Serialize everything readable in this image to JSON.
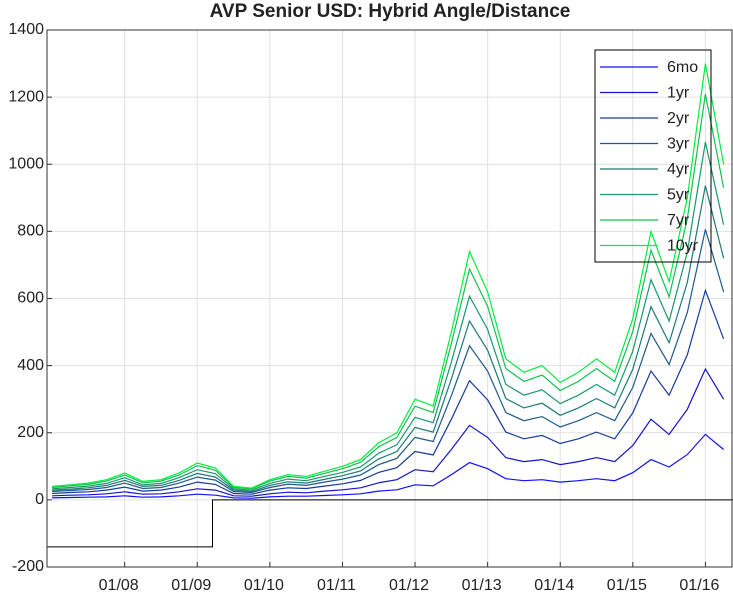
{
  "chart_data": {
    "type": "line",
    "title": "AVP Senior USD: Hybrid Angle/Distance",
    "x": [
      2007.0,
      2007.25,
      2007.5,
      2007.75,
      2008.0,
      2008.25,
      2008.5,
      2008.75,
      2009.0,
      2009.25,
      2009.5,
      2009.75,
      2010.0,
      2010.25,
      2010.5,
      2010.75,
      2011.0,
      2011.25,
      2011.5,
      2011.75,
      2012.0,
      2012.25,
      2012.5,
      2012.75,
      2013.0,
      2013.25,
      2013.5,
      2013.75,
      2014.0,
      2014.25,
      2014.5,
      2014.75,
      2015.0,
      2015.25,
      2015.5,
      2015.75,
      2016.0,
      2016.25
    ],
    "series": [
      {
        "name": "6mo",
        "color": "#1010ff",
        "values": [
          6,
          7,
          8,
          9,
          12,
          8,
          9,
          12,
          17,
          14,
          6,
          5,
          9,
          11,
          11,
          13,
          15,
          18,
          26,
          30,
          45,
          42,
          75,
          111,
          93,
          63,
          57,
          60,
          53,
          57,
          63,
          57,
          81,
          120,
          98,
          135,
          195,
          150
        ]
      },
      {
        "name": "1yr",
        "color": "#1414c8",
        "values": [
          12,
          14,
          15,
          18,
          24,
          17,
          18,
          24,
          33,
          29,
          12,
          11,
          18,
          23,
          21,
          26,
          30,
          36,
          51,
          60,
          90,
          84,
          150,
          222,
          186,
          126,
          114,
          120,
          105,
          114,
          126,
          114,
          162,
          240,
          195,
          270,
          390,
          300
        ]
      },
      {
        "name": "2yr",
        "color": "#163a9a",
        "values": [
          19,
          22,
          24,
          29,
          38,
          26,
          29,
          38,
          53,
          46,
          19,
          17,
          29,
          36,
          34,
          41,
          48,
          58,
          82,
          96,
          144,
          134,
          240,
          355,
          298,
          202,
          182,
          192,
          168,
          182,
          202,
          182,
          259,
          384,
          312,
          432,
          624,
          480
        ]
      },
      {
        "name": "3yr",
        "color": "#1e5a88",
        "values": [
          25,
          28,
          31,
          37,
          50,
          34,
          37,
          50,
          68,
          59,
          25,
          22,
          37,
          47,
          43,
          53,
          62,
          74,
          105,
          124,
          186,
          174,
          310,
          459,
          384,
          260,
          236,
          248,
          217,
          236,
          260,
          236,
          335,
          496,
          403,
          558,
          806,
          620
        ]
      },
      {
        "name": "4yr",
        "color": "#1e7878",
        "values": [
          29,
          32,
          36,
          43,
          58,
          40,
          43,
          58,
          79,
          68,
          29,
          25,
          43,
          54,
          50,
          61,
          72,
          86,
          122,
          144,
          216,
          202,
          360,
          533,
          446,
          302,
          274,
          288,
          252,
          274,
          302,
          274,
          389,
          576,
          468,
          648,
          936,
          720
        ]
      },
      {
        "name": "5yr",
        "color": "#1a9868",
        "values": [
          33,
          37,
          41,
          49,
          66,
          45,
          49,
          66,
          90,
          78,
          33,
          29,
          49,
          62,
          57,
          70,
          82,
          98,
          139,
          164,
          246,
          230,
          410,
          607,
          508,
          344,
          312,
          328,
          287,
          312,
          344,
          312,
          443,
          656,
          533,
          738,
          1066,
          820
        ]
      },
      {
        "name": "7yr",
        "color": "#12c050",
        "values": [
          37,
          42,
          46,
          56,
          74,
          51,
          56,
          74,
          102,
          88,
          37,
          33,
          56,
          70,
          65,
          79,
          93,
          112,
          158,
          186,
          279,
          260,
          465,
          688,
          577,
          391,
          353,
          372,
          326,
          353,
          391,
          353,
          502,
          744,
          605,
          837,
          1209,
          930
        ]
      },
      {
        "name": "10yr",
        "color": "#00f040",
        "values": [
          40,
          45,
          50,
          60,
          80,
          55,
          60,
          80,
          110,
          95,
          40,
          35,
          60,
          75,
          70,
          85,
          100,
          120,
          170,
          200,
          300,
          280,
          500,
          740,
          620,
          420,
          380,
          400,
          350,
          380,
          420,
          380,
          540,
          800,
          650,
          900,
          1300,
          1000
        ]
      }
    ],
    "baseline": {
      "color": "#000000",
      "x": [
        2006.93,
        2009.21,
        2009.21,
        2016.38
      ],
      "values": [
        -140,
        -140,
        0,
        0
      ]
    },
    "xlim": [
      2006.93,
      2016.38
    ],
    "xticks": [
      {
        "value": 2008,
        "label": "01/08"
      },
      {
        "value": 2009,
        "label": "01/09"
      },
      {
        "value": 2010,
        "label": "01/10"
      },
      {
        "value": 2011,
        "label": "01/11"
      },
      {
        "value": 2012,
        "label": "01/12"
      },
      {
        "value": 2013,
        "label": "01/13"
      },
      {
        "value": 2014,
        "label": "01/14"
      },
      {
        "value": 2015,
        "label": "01/15"
      },
      {
        "value": 2016,
        "label": "01/16"
      }
    ],
    "ylim": [
      -200,
      1400
    ],
    "yticks": [
      -200,
      0,
      200,
      400,
      600,
      800,
      1000,
      1200,
      1400
    ],
    "grid": true,
    "legend": "northeast"
  }
}
